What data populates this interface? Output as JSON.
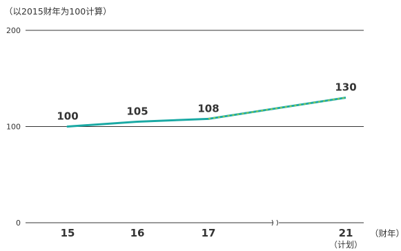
{
  "chart_data": {
    "type": "line",
    "note": "（以2015财年为100计算）",
    "xunit": "（财年）",
    "ylim": [
      0,
      200
    ],
    "yticks": [
      "0",
      "100",
      "200"
    ],
    "grid": true,
    "axis_break_between": [
      "17",
      "21"
    ],
    "series": [
      {
        "style": "solid",
        "points": [
          {
            "x": "15",
            "y": 100
          },
          {
            "x": "16",
            "y": 105
          },
          {
            "x": "17",
            "y": 108
          }
        ]
      },
      {
        "style": "dashed",
        "points": [
          {
            "x": "17",
            "y": 108
          },
          {
            "x": "21",
            "y": 130
          }
        ]
      }
    ],
    "categories": [
      {
        "label": "15",
        "sub": ""
      },
      {
        "label": "16",
        "sub": ""
      },
      {
        "label": "17",
        "sub": ""
      },
      {
        "label": "21",
        "sub": "（计划）"
      }
    ],
    "data_labels": [
      {
        "x": "15",
        "text": "100"
      },
      {
        "x": "16",
        "text": "105"
      },
      {
        "x": "17",
        "text": "108"
      },
      {
        "x": "21",
        "text": "130"
      }
    ],
    "colors": {
      "line": "#1aa9a4",
      "dash": "#a8cf3f",
      "grid": "#333333"
    }
  }
}
